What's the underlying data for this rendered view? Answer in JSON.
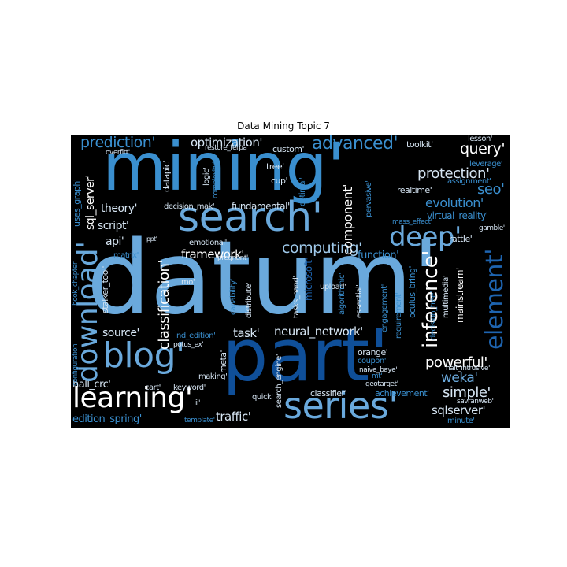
{
  "title": "Data Mining Topic 7",
  "colors": {
    "background": "#000000",
    "palette": [
      "#0f4f99",
      "#2b7bbf",
      "#6aa9dc",
      "#d6e5f3"
    ]
  },
  "words": {
    "datum": "datum'",
    "part": "part'",
    "mining": "mining'",
    "search": "search'",
    "series": "series'",
    "learning": "learning'",
    "blog": "blog'",
    "download": "download'",
    "deep": "deep'",
    "element": "element'",
    "inference": "inference'",
    "classification": "classification'",
    "advanced": "advanced'",
    "prediction": "prediction'",
    "optimization": "optimization'",
    "protection": "protection'",
    "evolution": "evolution'",
    "seo": "seo'",
    "query": "query'",
    "computing": "computing'",
    "neural_network": "neural_network'",
    "framework": "framework'",
    "powerful": "powerful'",
    "simple": "simple'",
    "weka": "weka'",
    "sqlserver": "sqlserver'",
    "traffic": "traffic'",
    "hall_crc": "hall_crc'",
    "edition_spring": "edition_spring'",
    "theory": "theory'",
    "script": "script'",
    "api": "api'",
    "source": "source'",
    "task": "task'",
    "fundamental": "fundamental'",
    "component": "component'",
    "sql_server": "sql_server'",
    "uses_graph": "uses_graph'",
    "mainstream": "mainstream'",
    "function": "function'",
    "toolkit": "toolkit'",
    "lesson": "lesson'",
    "leverage": "leverage'",
    "assignment": "assignment'",
    "realtime": "realtime'",
    "virtual_reality": "virtual_reality'",
    "rattle": "rattle'",
    "mass_effect": "mass_effect'",
    "custom": "custom'",
    "tree": "tree'",
    "cup": "cup'",
    "optimal": "optimal'",
    "pervasive": "pervasive'",
    "datapic": "datapic'",
    "logic": "logic'",
    "complexity": "complexity'",
    "restore_ferpa": "restore_ferpa'",
    "overfitt": "overfitt'",
    "decision_mak": "decision_mak'",
    "emotional": "emotional'",
    "pregnant": "pregnant'",
    "matrix": "matrix'",
    "ppt": "ppt'",
    "stalker_tool": "stalker_tool'",
    "book_chapter": "book_chapter'",
    "configuration": "configuration'",
    "mo": "mo'",
    "capability": "capability'",
    "distribute": "distribute'",
    "microsoft": "microsoft'",
    "tasks_hand": "tasks_hand'",
    "algorithmic": "algorithmic'",
    "upload": "upload'",
    "essential": "essential'",
    "engagement": "engagement'",
    "requirement": "requirement'",
    "oculus_bring": "oculus_bring'",
    "multimedia": "multimedia'",
    "decision_tree": "decision_tree'",
    "nd_edition": "nd_edition'",
    "potus_ex": "potus_ex'",
    "making": "making'",
    "meta": "meta'",
    "cart": "cart'",
    "keyword": "keyword'",
    "ii": "ii'",
    "template": "template'",
    "quick": "quick'",
    "search_engine": "search_engine'",
    "orange": "orange'",
    "coupon": "coupon'",
    "mt": "mt'",
    "geotarget": "geotarget'",
    "naive_baye": "naive_baye'",
    "classifier": "classifier'",
    "achievement": "achievement'",
    "halt_intrusive": "halt_intrusive'",
    "savranweb": "savranweb'",
    "minute": "minute'",
    "gamble": "gamble'"
  }
}
